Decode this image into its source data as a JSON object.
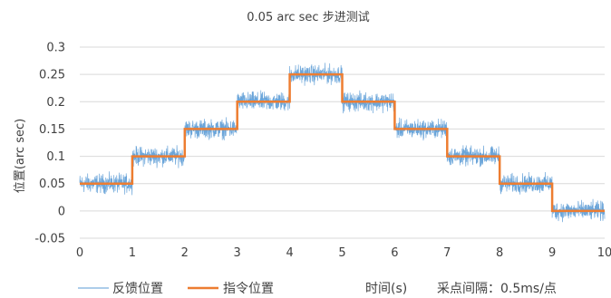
{
  "chart_data": {
    "type": "line",
    "title": "0.05 arc sec 步进测试",
    "ylabel": "位置(arc sec)",
    "xlabel": "",
    "xlim": [
      0,
      10
    ],
    "ylim": [
      -0.05,
      0.3
    ],
    "xticks": [
      0,
      1,
      2,
      3,
      4,
      5,
      6,
      7,
      8,
      9,
      10
    ],
    "yticks": [
      "-0.05",
      "0",
      "0.05",
      "0.1",
      "0.15",
      "0.2",
      "0.25",
      "0.3"
    ],
    "grid": true,
    "legend_position": "bottom",
    "series": [
      {
        "name": "反馈位置",
        "color": "#5b9bd5",
        "style": "noisy",
        "segments": [
          {
            "x": [
              0,
              1
            ],
            "mean": 0.05,
            "noise_half_range": 0.025
          },
          {
            "x": [
              1,
              2
            ],
            "mean": 0.1,
            "noise_half_range": 0.025
          },
          {
            "x": [
              2,
              3
            ],
            "mean": 0.15,
            "noise_half_range": 0.025
          },
          {
            "x": [
              3,
              4
            ],
            "mean": 0.2,
            "noise_half_range": 0.025
          },
          {
            "x": [
              4,
              5
            ],
            "mean": 0.25,
            "noise_half_range": 0.025
          },
          {
            "x": [
              5,
              6
            ],
            "mean": 0.2,
            "noise_half_range": 0.025
          },
          {
            "x": [
              6,
              7
            ],
            "mean": 0.15,
            "noise_half_range": 0.025
          },
          {
            "x": [
              7,
              8
            ],
            "mean": 0.1,
            "noise_half_range": 0.025
          },
          {
            "x": [
              8,
              9
            ],
            "mean": 0.05,
            "noise_half_range": 0.025
          },
          {
            "x": [
              9,
              10
            ],
            "mean": 0.0,
            "noise_half_range": 0.025
          }
        ]
      },
      {
        "name": "指令位置",
        "color": "#ed7d31",
        "style": "step",
        "x": [
          0,
          1,
          1,
          2,
          2,
          3,
          3,
          4,
          4,
          5,
          5,
          6,
          6,
          7,
          7,
          8,
          8,
          9,
          9,
          10
        ],
        "y": [
          0.05,
          0.05,
          0.1,
          0.1,
          0.15,
          0.15,
          0.2,
          0.2,
          0.25,
          0.25,
          0.2,
          0.2,
          0.15,
          0.15,
          0.1,
          0.1,
          0.05,
          0.05,
          0,
          0
        ]
      }
    ]
  },
  "notes": {
    "time_label": "时间(s)",
    "sample_interval": "采点间隔：0.5ms/点"
  }
}
